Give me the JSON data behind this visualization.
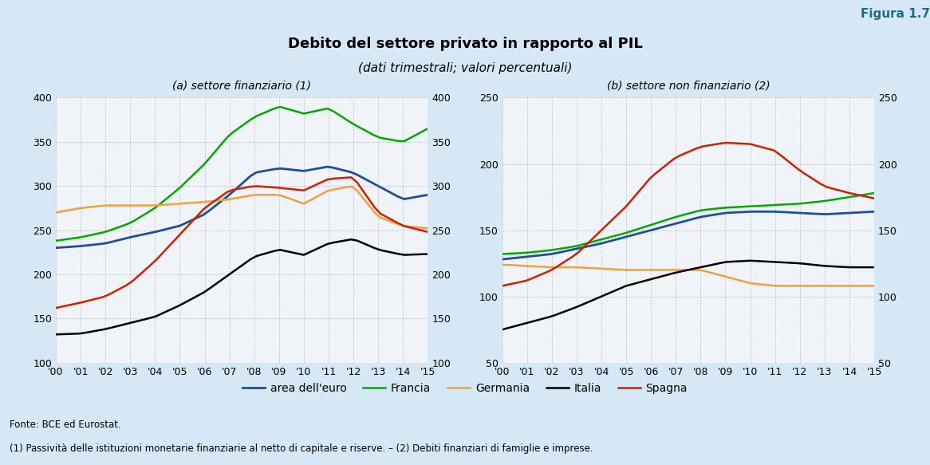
{
  "title": "Debito del settore privato in rapporto al PIL",
  "subtitle": "(dati trimestrali; valori percentuali)",
  "figura": "Figura 1.7",
  "panel_a_title": "(a) settore finanziario (1)",
  "panel_b_title": "(b) settore non finanziario (2)",
  "footnote1": "Fonte: BCE ed Eurostat.",
  "footnote2": "(1) Passività delle istituzioni monetarie finanziarie al netto di capitale e riserve. – (2) Debiti finanziari di famiglie e imprese.",
  "legend_labels": [
    "area dell'euro",
    "Francia",
    "Germania",
    "Italia",
    "Spagna"
  ],
  "colors": {
    "euro": "#1f4e9c",
    "france": "#00aa00",
    "germany": "#f0a040",
    "italy": "#000000",
    "spain": "#cc2200"
  },
  "background_color": "#d6e8f5",
  "panel_bg": "#ffffff",
  "header_bg": "#c5dcea",
  "years": [
    "'00",
    "'01",
    "'02",
    "'03",
    "'04",
    "'05",
    "'06",
    "'07",
    "'08",
    "'09",
    "'10",
    "'11",
    "'12",
    "'13",
    "'14",
    "'15"
  ],
  "panel_a": {
    "ylim": [
      100,
      400
    ],
    "yticks": [
      100,
      150,
      200,
      250,
      300,
      350,
      400
    ],
    "euro": [
      230,
      232,
      235,
      242,
      248,
      255,
      268,
      290,
      315,
      320,
      317,
      322,
      315,
      300,
      285,
      290
    ],
    "france": [
      238,
      242,
      248,
      258,
      275,
      298,
      325,
      358,
      378,
      390,
      382,
      388,
      370,
      355,
      350,
      365
    ],
    "germany": [
      270,
      275,
      278,
      278,
      278,
      280,
      282,
      285,
      290,
      290,
      280,
      295,
      300,
      265,
      255,
      252
    ],
    "italy": [
      132,
      133,
      138,
      145,
      152,
      165,
      180,
      200,
      220,
      228,
      222,
      235,
      240,
      228,
      222,
      223
    ],
    "spain": [
      162,
      168,
      175,
      190,
      215,
      245,
      275,
      295,
      300,
      298,
      295,
      308,
      310,
      270,
      255,
      248
    ]
  },
  "panel_b": {
    "ylim": [
      50,
      250
    ],
    "yticks": [
      50,
      100,
      150,
      200,
      250
    ],
    "euro": [
      128,
      130,
      132,
      136,
      140,
      145,
      150,
      155,
      160,
      163,
      164,
      164,
      163,
      162,
      163,
      164
    ],
    "france": [
      132,
      133,
      135,
      138,
      143,
      148,
      154,
      160,
      165,
      167,
      168,
      169,
      170,
      172,
      175,
      178
    ],
    "germany": [
      124,
      123,
      122,
      122,
      121,
      120,
      120,
      120,
      120,
      115,
      110,
      108,
      108,
      108,
      108,
      108
    ],
    "italy": [
      75,
      80,
      85,
      92,
      100,
      108,
      113,
      118,
      122,
      126,
      127,
      126,
      125,
      123,
      122,
      122
    ],
    "spain": [
      108,
      112,
      120,
      132,
      150,
      168,
      190,
      205,
      213,
      216,
      215,
      210,
      195,
      183,
      178,
      174
    ]
  }
}
